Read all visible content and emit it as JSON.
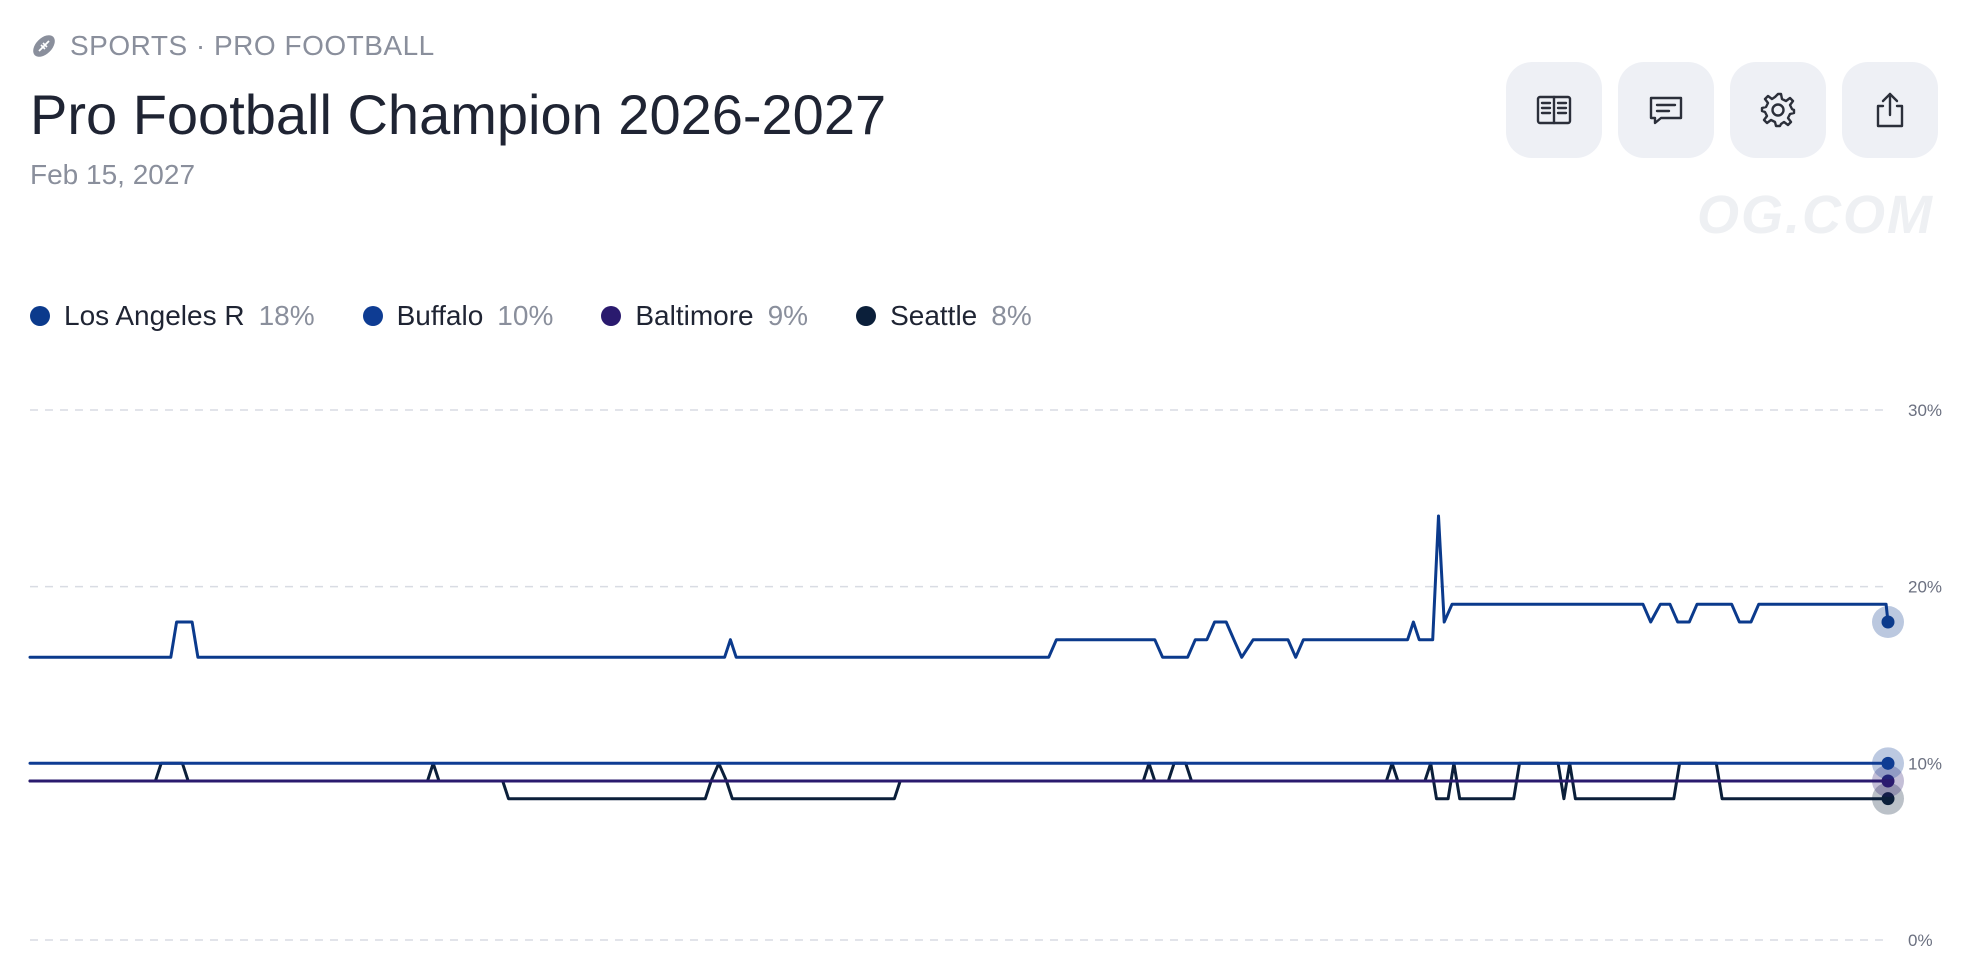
{
  "header": {
    "breadcrumb": "SPORTS · PRO FOOTBALL",
    "title": "Pro Football Champion 2026-2027",
    "date": "Feb 15, 2027"
  },
  "toolbar": {
    "icons": [
      "book-icon",
      "comment-icon",
      "gear-icon",
      "share-icon"
    ]
  },
  "watermark": "OG.COM",
  "chart_data": {
    "type": "line",
    "title": "",
    "xlabel": "",
    "ylabel": "",
    "ylim": [
      0,
      30
    ],
    "yticks": [
      {
        "value": 30,
        "label": "30%"
      },
      {
        "value": 20,
        "label": "20%"
      },
      {
        "value": 10,
        "label": "10%"
      },
      {
        "value": 0,
        "label": "0%"
      }
    ],
    "grid": true,
    "legend_position": "top-left",
    "series": [
      {
        "name": "Los Angeles R",
        "label": "18%",
        "color": "#0b3a8c",
        "points": [
          [
            0,
            16
          ],
          [
            73,
            16
          ],
          [
            76,
            18
          ],
          [
            84,
            18
          ],
          [
            87,
            16
          ],
          [
            360,
            16
          ],
          [
            363,
            17
          ],
          [
            366,
            16
          ],
          [
            528,
            16
          ],
          [
            532,
            17
          ],
          [
            583,
            17
          ],
          [
            587,
            16
          ],
          [
            600,
            16
          ],
          [
            604,
            17
          ],
          [
            610,
            17
          ],
          [
            614,
            18
          ],
          [
            620,
            18
          ],
          [
            624,
            17
          ],
          [
            628,
            16
          ],
          [
            634,
            17
          ],
          [
            652,
            17
          ],
          [
            656,
            16
          ],
          [
            660,
            17
          ],
          [
            714,
            17
          ],
          [
            717,
            18
          ],
          [
            720,
            17
          ],
          [
            727,
            17
          ],
          [
            730,
            24
          ],
          [
            733,
            18
          ],
          [
            737,
            19
          ],
          [
            836,
            19
          ],
          [
            840,
            18
          ],
          [
            845,
            19
          ],
          [
            850,
            19
          ],
          [
            854,
            18
          ],
          [
            860,
            18
          ],
          [
            864,
            19
          ],
          [
            882,
            19
          ],
          [
            886,
            18
          ],
          [
            892,
            18
          ],
          [
            896,
            19
          ],
          [
            962,
            19
          ],
          [
            963,
            18
          ]
        ]
      },
      {
        "name": "Buffalo",
        "label": "10%",
        "color": "#0e3c93",
        "points": [
          [
            0,
            10
          ],
          [
            963,
            10
          ]
        ]
      },
      {
        "name": "Baltimore",
        "label": "9%",
        "color": "#2a1a6e",
        "points": [
          [
            0,
            9
          ],
          [
            963,
            9
          ]
        ]
      },
      {
        "name": "Seattle",
        "label": "8%",
        "color": "#0b1f3a",
        "points": [
          [
            0,
            9
          ],
          [
            65,
            9
          ],
          [
            68,
            10
          ],
          [
            79,
            10
          ],
          [
            82,
            9
          ],
          [
            206,
            9
          ],
          [
            209,
            10
          ],
          [
            212,
            9
          ],
          [
            245,
            9
          ],
          [
            248,
            8
          ],
          [
            350,
            8
          ],
          [
            353,
            9
          ],
          [
            357,
            10
          ],
          [
            361,
            9
          ],
          [
            364,
            8
          ],
          [
            448,
            8
          ],
          [
            451,
            9
          ],
          [
            577,
            9
          ],
          [
            580,
            10
          ],
          [
            583,
            9
          ],
          [
            590,
            9
          ],
          [
            593,
            10
          ],
          [
            599,
            10
          ],
          [
            602,
            9
          ],
          [
            703,
            9
          ],
          [
            706,
            10
          ],
          [
            709,
            9
          ],
          [
            723,
            9
          ],
          [
            726,
            10
          ],
          [
            729,
            8
          ],
          [
            735,
            8
          ],
          [
            738,
            10
          ],
          [
            741,
            8
          ],
          [
            769,
            8
          ],
          [
            772,
            10
          ],
          [
            792,
            10
          ],
          [
            795,
            8
          ],
          [
            798,
            10
          ],
          [
            801,
            8
          ],
          [
            852,
            8
          ],
          [
            855,
            10
          ],
          [
            874,
            10
          ],
          [
            877,
            8
          ],
          [
            963,
            8
          ]
        ]
      }
    ]
  }
}
